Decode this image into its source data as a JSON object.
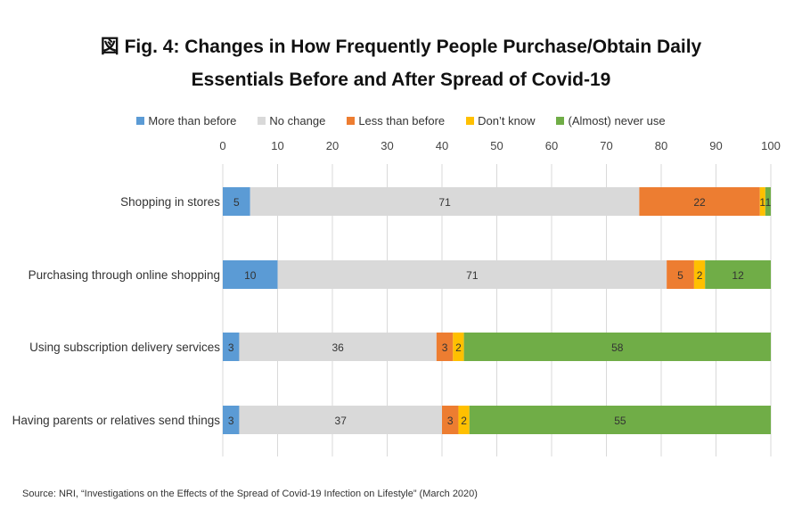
{
  "title_lines": [
    "図 Fig. 4: Changes in How Frequently People Purchase/Obtain Daily",
    "Essentials Before and After Spread of Covid-19"
  ],
  "source": "Source: NRI, “Investigations on the Effects of the Spread of Covid-19 Infection on Lifestyle” (March 2020)",
  "chart_data": {
    "type": "bar",
    "orientation": "horizontal",
    "stacked": true,
    "title": "図 Fig. 4: Changes in How Frequently People Purchase/Obtain Daily Essentials Before and After Spread of Covid-19",
    "xlim": [
      0,
      100
    ],
    "x_ticks": [
      "0",
      "10",
      "20",
      "30",
      "40",
      "50",
      "60",
      "70",
      "80",
      "90",
      "100"
    ],
    "x_axis_position": "top",
    "grid": "vertical",
    "legend_position": "top",
    "categories": [
      "Shopping in stores",
      "Purchasing through online shopping",
      "Using subscription delivery services",
      "Having parents or relatives send things"
    ],
    "series": [
      {
        "name": "More than before",
        "color": "#5b9bd5",
        "values": [
          5,
          10,
          3,
          3
        ],
        "labels": [
          "5",
          "10",
          "3",
          "3"
        ]
      },
      {
        "name": "No change",
        "color": "#d9d9d9",
        "values": [
          71,
          71,
          36,
          37
        ],
        "labels": [
          "71",
          "71",
          "36",
          "37"
        ]
      },
      {
        "name": "Less than before",
        "color": "#ed7d31",
        "values": [
          22,
          5,
          3,
          3
        ],
        "labels": [
          "22",
          "5",
          "3",
          "3"
        ]
      },
      {
        "name": "Don’t know",
        "color": "#ffc000",
        "values": [
          1,
          2,
          2,
          2
        ],
        "labels": [
          "1",
          "2",
          "2",
          "2"
        ]
      },
      {
        "name": "(Almost) never use",
        "color": "#70ad47",
        "values": [
          1,
          12,
          58,
          55
        ],
        "labels": [
          "1",
          "12",
          "58",
          "55"
        ]
      }
    ]
  }
}
